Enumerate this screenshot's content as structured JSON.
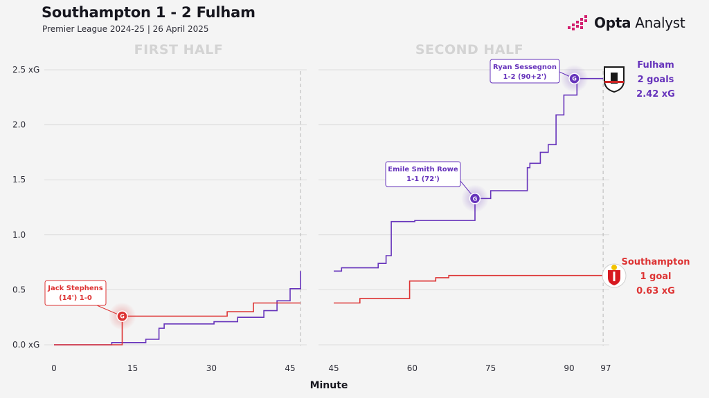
{
  "header": {
    "title": "Southampton 1 - 2 Fulham",
    "subtitle": "Premier League 2024-25 | 26 April 2025"
  },
  "brand": {
    "name_bold": "Opta",
    "name_regular": "Analyst"
  },
  "chart_data": {
    "type": "line",
    "title": "Southampton 1 - 2 Fulham",
    "subtitle": "Premier League 2024-25 | 26 April 2025",
    "xlabel": "Minute",
    "ylabel": "",
    "ylim": [
      0,
      2.5
    ],
    "y_ticks": [
      "0.0 xG",
      "0.5",
      "1.0",
      "1.5",
      "2.0",
      "2.5 xG"
    ],
    "y_tick_values": [
      0,
      0.5,
      1.0,
      1.5,
      2.0,
      2.5
    ],
    "grid": true,
    "panels": [
      {
        "label": "FIRST HALF",
        "xlim": [
          -1,
          48
        ],
        "x_ticks": [
          "0",
          "15",
          "30",
          "45"
        ],
        "x_tick_values": [
          0,
          15,
          30,
          45
        ],
        "end_marker": 47
      },
      {
        "label": "SECOND HALF",
        "xlim": [
          45,
          97
        ],
        "x_ticks": [
          "45",
          "60",
          "75",
          "90",
          "97"
        ],
        "x_tick_values": [
          45,
          60,
          75,
          90,
          97
        ],
        "end_marker": 96.5
      }
    ],
    "series": [
      {
        "name": "Fulham",
        "color": "#6633bb",
        "first_half": [
          [
            0,
            0
          ],
          [
            11,
            0
          ],
          [
            11,
            0.02
          ],
          [
            17.5,
            0.02
          ],
          [
            17.5,
            0.05
          ],
          [
            20,
            0.05
          ],
          [
            20,
            0.15
          ],
          [
            21,
            0.15
          ],
          [
            21,
            0.19
          ],
          [
            30.5,
            0.19
          ],
          [
            30.5,
            0.21
          ],
          [
            35,
            0.21
          ],
          [
            35,
            0.25
          ],
          [
            40,
            0.25
          ],
          [
            40,
            0.31
          ],
          [
            42.5,
            0.31
          ],
          [
            42.5,
            0.4
          ],
          [
            45,
            0.4
          ],
          [
            45,
            0.51
          ],
          [
            47,
            0.51
          ],
          [
            47,
            0.67
          ]
        ],
        "second_half": [
          [
            45,
            0.67
          ],
          [
            46.5,
            0.67
          ],
          [
            46.5,
            0.7
          ],
          [
            53.5,
            0.7
          ],
          [
            53.5,
            0.74
          ],
          [
            55,
            0.74
          ],
          [
            55,
            0.81
          ],
          [
            56,
            0.81
          ],
          [
            56,
            1.12
          ],
          [
            60.5,
            1.12
          ],
          [
            60.5,
            1.13
          ],
          [
            72,
            1.13
          ],
          [
            72,
            1.33
          ],
          [
            75,
            1.33
          ],
          [
            75,
            1.4
          ],
          [
            82,
            1.4
          ],
          [
            82,
            1.61
          ],
          [
            82.5,
            1.61
          ],
          [
            82.5,
            1.65
          ],
          [
            84.5,
            1.65
          ],
          [
            84.5,
            1.75
          ],
          [
            86,
            1.75
          ],
          [
            86,
            1.82
          ],
          [
            87.5,
            1.82
          ],
          [
            87.5,
            2.09
          ],
          [
            89,
            2.09
          ],
          [
            89,
            2.27
          ],
          [
            91.5,
            2.27
          ],
          [
            91.5,
            2.42
          ],
          [
            96.5,
            2.42
          ]
        ]
      },
      {
        "name": "Southampton",
        "color": "#dd3333",
        "first_half": [
          [
            0,
            0
          ],
          [
            13,
            0
          ],
          [
            13,
            0.26
          ],
          [
            33,
            0.26
          ],
          [
            33,
            0.3
          ],
          [
            38,
            0.3
          ],
          [
            38,
            0.38
          ],
          [
            47,
            0.38
          ]
        ],
        "second_half": [
          [
            45,
            0.38
          ],
          [
            50,
            0.38
          ],
          [
            50,
            0.42
          ],
          [
            59.5,
            0.42
          ],
          [
            59.5,
            0.58
          ],
          [
            64.5,
            0.58
          ],
          [
            64.5,
            0.61
          ],
          [
            67,
            0.61
          ],
          [
            67,
            0.63
          ],
          [
            96.5,
            0.63
          ]
        ]
      }
    ],
    "goals": [
      {
        "team": "Southampton",
        "half": "first_half",
        "minute": 13,
        "xg": 0.26,
        "color": "#dd3333",
        "letter": "G",
        "label_line1": "Jack Stephens",
        "label_line2": "(14') 1-0"
      },
      {
        "team": "Fulham",
        "half": "second_half",
        "minute": 72,
        "xg": 1.33,
        "color": "#6633bb",
        "letter": "G",
        "label_line1": "Emile Smith Rowe",
        "label_line2": "1-1 (72')"
      },
      {
        "team": "Fulham",
        "half": "second_half",
        "minute": 91,
        "xg": 2.42,
        "color": "#6633bb",
        "letter": "G",
        "label_line1": "Ryan Sessegnon",
        "label_line2": "1-2 (90+2')"
      }
    ],
    "teams": [
      {
        "name": "Fulham",
        "goals_text": "2 goals",
        "xg_text": "2.42 xG",
        "color": "#6633bb"
      },
      {
        "name": "Southampton",
        "goals_text": "1 goal",
        "xg_text": "0.63 xG",
        "color": "#dd3333"
      }
    ]
  }
}
